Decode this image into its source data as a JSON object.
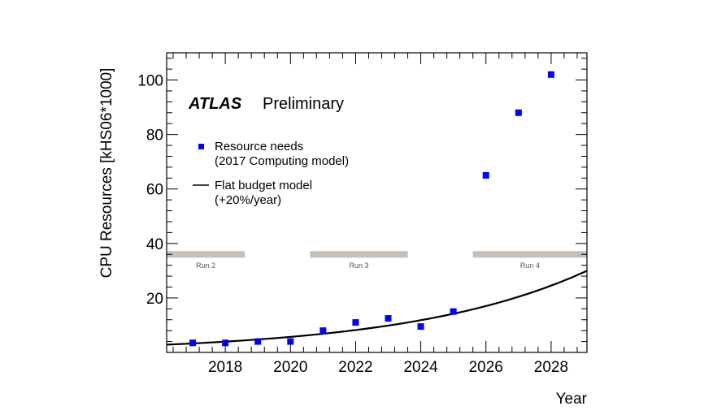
{
  "chart_data": {
    "type": "scatter",
    "xlabel": "Year",
    "ylabel": "CPU Resources [kHS06*1000]",
    "xlim": [
      2016.2,
      2029.1
    ],
    "ylim": [
      0,
      110
    ],
    "x_ticks": [
      2018,
      2020,
      2022,
      2024,
      2026,
      2028
    ],
    "y_ticks": [
      20,
      40,
      60,
      80,
      100
    ],
    "x_tick_labels": [
      "2018",
      "2020",
      "2022",
      "2024",
      "2026",
      "2028"
    ],
    "y_tick_labels": [
      "20",
      "40",
      "60",
      "80",
      "100"
    ],
    "grid": false,
    "legend_position": "upper-left",
    "annotation": {
      "experiment": "ATLAS",
      "status": "Preliminary"
    },
    "series": [
      {
        "name": "Resource needs\n(2017 Computing model)",
        "legend_lines": [
          "Resource needs",
          "(2017 Computing model)"
        ],
        "kind": "markers",
        "color": "#0000ff",
        "x": [
          2017,
          2018,
          2019,
          2020,
          2021,
          2022,
          2023,
          2024,
          2025,
          2026,
          2027,
          2028
        ],
        "y": [
          3.5,
          3.5,
          4,
          4,
          8,
          11,
          12.5,
          9.5,
          15,
          65,
          88,
          102
        ]
      },
      {
        "name": "Flat budget model\n(+20%/year)",
        "legend_lines": [
          "Flat budget model",
          "(+20%/year)"
        ],
        "kind": "line",
        "color": "#000000",
        "model": {
          "base_x": 2017,
          "base_y": 3.3,
          "growth": 1.2
        }
      }
    ],
    "runs": [
      {
        "label": "Run 2",
        "x_start": 2016.2,
        "x_end": 2018.6,
        "y": 36
      },
      {
        "label": "Run 3",
        "x_start": 2020.6,
        "x_end": 2023.6,
        "y": 36
      },
      {
        "label": "Run 4",
        "x_start": 2025.6,
        "x_end": 2029.1,
        "y": 36
      }
    ],
    "run_bar_color": "#c8beb4"
  }
}
